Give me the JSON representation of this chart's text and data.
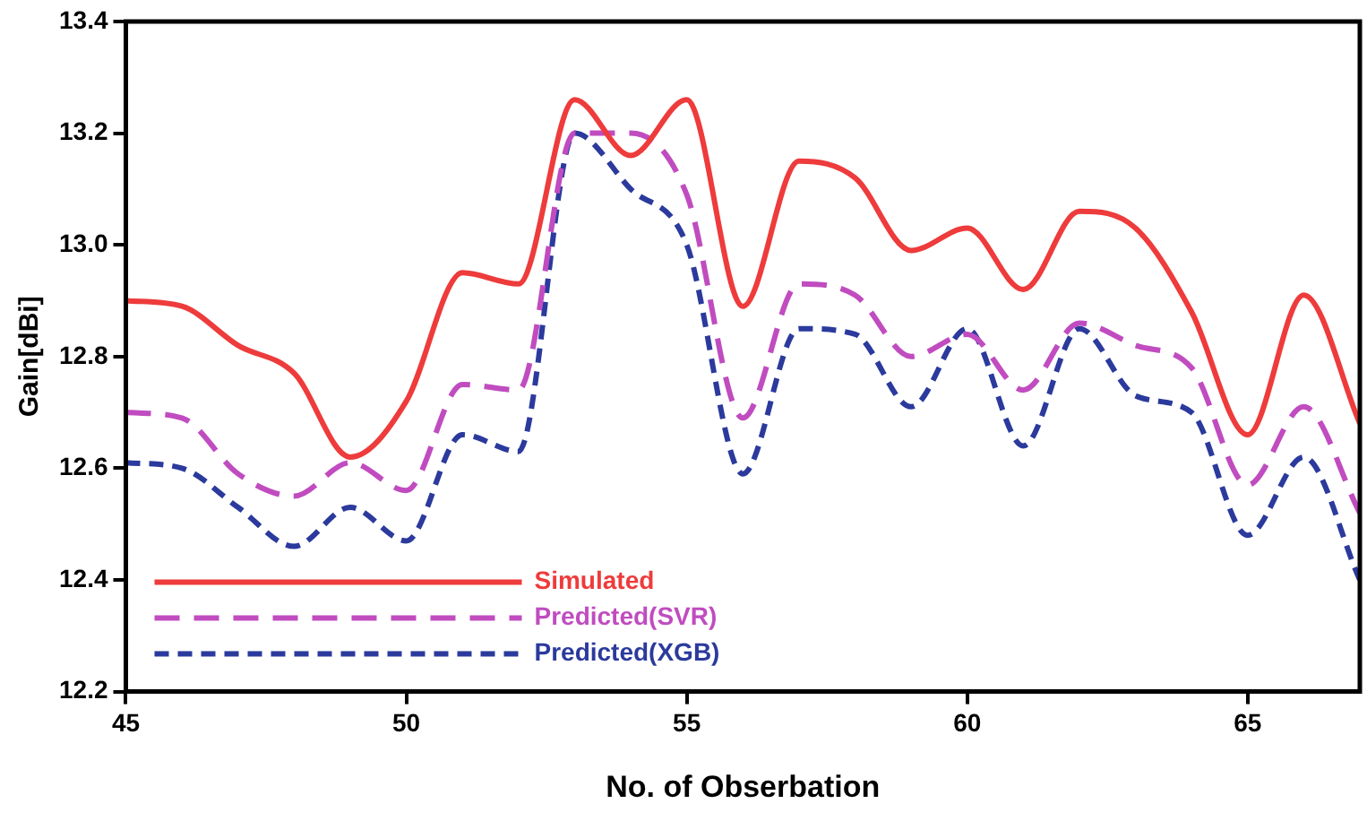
{
  "chart_data": {
    "type": "line",
    "xlabel": "No. of Obserbation",
    "ylabel": "Gain[dBi]",
    "x": [
      45,
      46,
      47,
      48,
      49,
      50,
      51,
      52,
      53,
      54,
      55,
      56,
      57,
      58,
      59,
      60,
      61,
      62,
      63,
      64,
      65,
      66,
      67
    ],
    "xlim": [
      45,
      67
    ],
    "xticks": [
      45,
      50,
      55,
      60,
      65
    ],
    "ylim": [
      12.2,
      13.4
    ],
    "yticks": [
      12.2,
      12.4,
      12.6,
      12.8,
      {
        "value": 13,
        "label": "13.0"
      },
      13.2,
      13.4
    ],
    "grid": false,
    "legend": "bottom left",
    "marker": "none",
    "series": [
      {
        "name": "Simulated",
        "color": "#ee3b3b",
        "line_style": "solid",
        "values": [
          12.9,
          12.89,
          12.82,
          12.77,
          12.62,
          12.72,
          12.95,
          12.93,
          13.26,
          13.16,
          13.26,
          12.89,
          13.15,
          13.12,
          12.99,
          13.03,
          12.92,
          13.06,
          13.03,
          12.88,
          12.66,
          12.91,
          12.68
        ]
      },
      {
        "name": "Predicted(SVR)",
        "color": "#c04cc0",
        "line_style": "dashed",
        "values": [
          12.7,
          12.69,
          12.59,
          12.55,
          12.61,
          12.56,
          12.75,
          12.74,
          13.2,
          13.2,
          13.09,
          12.69,
          12.93,
          12.91,
          12.8,
          12.84,
          12.74,
          12.86,
          12.82,
          12.78,
          12.57,
          12.71,
          12.52
        ]
      },
      {
        "name": "Predicted(XGB)",
        "color": "#2b3a9c",
        "line_style": "dotted",
        "values": [
          12.61,
          12.6,
          12.53,
          12.46,
          12.53,
          12.47,
          12.66,
          12.63,
          13.2,
          13.1,
          13.0,
          12.59,
          12.85,
          12.84,
          12.71,
          12.85,
          12.64,
          12.85,
          12.73,
          12.7,
          12.48,
          12.62,
          12.4
        ]
      }
    ]
  }
}
